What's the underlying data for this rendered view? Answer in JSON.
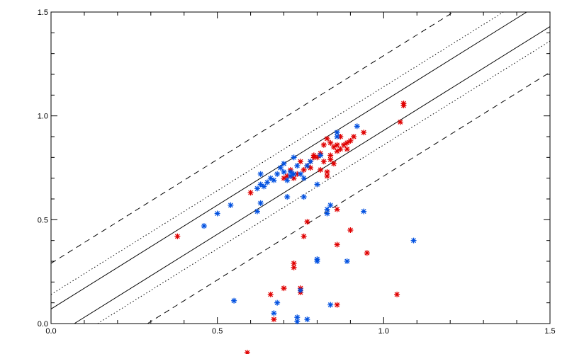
{
  "chart_data": {
    "type": "scatter",
    "title": "",
    "xlabel": "",
    "ylabel": "",
    "xlim": [
      0.0,
      1.5
    ],
    "ylim": [
      0.0,
      1.5
    ],
    "x_ticks": [
      "0.0",
      "0.5",
      "1.0",
      "1.5"
    ],
    "y_ticks": [
      "0.0",
      "0.5",
      "1.0",
      "1.5"
    ],
    "x_tick_values": [
      0.0,
      0.5,
      1.0,
      1.5
    ],
    "y_tick_values": [
      0.0,
      0.5,
      1.0,
      1.5
    ],
    "grid": false,
    "colors": {
      "series_red": "#e00000",
      "series_blue": "#0050e0",
      "lines": "#000000"
    },
    "reference_lines": [
      {
        "style": "solid",
        "slope": 1,
        "intercept": 0.07
      },
      {
        "style": "solid",
        "slope": 1,
        "intercept": -0.07
      },
      {
        "style": "dotted",
        "slope": 1,
        "intercept": 0.14
      },
      {
        "style": "dotted",
        "slope": 1,
        "intercept": -0.14
      },
      {
        "style": "dashed",
        "slope": 1,
        "intercept": 0.29
      },
      {
        "style": "dashed",
        "slope": 1,
        "intercept": -0.29
      }
    ],
    "series": [
      {
        "color": "#e00000",
        "points": [
          [
            0.38,
            0.42
          ],
          [
            0.6,
            0.63
          ],
          [
            0.66,
            0.14
          ],
          [
            0.67,
            0.02
          ],
          [
            0.7,
            0.17
          ],
          [
            0.73,
            0.29
          ],
          [
            0.73,
            0.27
          ],
          [
            0.75,
            0.17
          ],
          [
            0.75,
            0.15
          ],
          [
            0.76,
            0.42
          ],
          [
            0.77,
            0.49
          ],
          [
            0.86,
            0.55
          ],
          [
            0.86,
            0.38
          ],
          [
            0.86,
            0.09
          ],
          [
            0.9,
            0.45
          ],
          [
            0.95,
            0.34
          ],
          [
            1.04,
            0.14
          ],
          [
            1.05,
            0.97
          ],
          [
            1.06,
            1.05
          ],
          [
            1.06,
            1.06
          ],
          [
            0.94,
            0.92
          ],
          [
            0.91,
            0.9
          ],
          [
            0.9,
            0.88
          ],
          [
            0.89,
            0.87
          ],
          [
            0.88,
            0.86
          ],
          [
            0.87,
            0.84
          ],
          [
            0.86,
            0.83
          ],
          [
            0.85,
            0.85
          ],
          [
            0.84,
            0.87
          ],
          [
            0.83,
            0.89
          ],
          [
            0.82,
            0.86
          ],
          [
            0.81,
            0.82
          ],
          [
            0.8,
            0.8
          ],
          [
            0.79,
            0.81
          ],
          [
            0.78,
            0.78
          ],
          [
            0.77,
            0.76
          ],
          [
            0.76,
            0.74
          ],
          [
            0.75,
            0.78
          ],
          [
            0.74,
            0.72
          ],
          [
            0.73,
            0.7
          ],
          [
            0.72,
            0.74
          ],
          [
            0.71,
            0.71
          ],
          [
            0.7,
            0.7
          ],
          [
            0.82,
            0.78
          ],
          [
            0.84,
            0.79
          ],
          [
            0.85,
            0.77
          ],
          [
            0.83,
            0.73
          ],
          [
            0.81,
            0.74
          ],
          [
            0.79,
            0.8
          ],
          [
            0.86,
            0.86
          ],
          [
            0.87,
            0.9
          ],
          [
            0.84,
            0.81
          ],
          [
            0.78,
            0.75
          ],
          [
            0.89,
            0.84
          ],
          [
            0.83,
            0.71
          ]
        ]
      },
      {
        "color": "#0050e0",
        "points": [
          [
            0.46,
            0.47
          ],
          [
            0.5,
            0.53
          ],
          [
            0.54,
            0.57
          ],
          [
            0.55,
            0.11
          ],
          [
            0.62,
            0.54
          ],
          [
            0.63,
            0.58
          ],
          [
            0.62,
            0.65
          ],
          [
            0.63,
            0.67
          ],
          [
            0.63,
            0.72
          ],
          [
            0.64,
            0.66
          ],
          [
            0.65,
            0.68
          ],
          [
            0.66,
            0.7
          ],
          [
            0.67,
            0.69
          ],
          [
            0.67,
            0.05
          ],
          [
            0.68,
            0.1
          ],
          [
            0.68,
            0.72
          ],
          [
            0.69,
            0.75
          ],
          [
            0.7,
            0.73
          ],
          [
            0.7,
            0.77
          ],
          [
            0.71,
            0.61
          ],
          [
            0.72,
            0.73
          ],
          [
            0.72,
            0.71
          ],
          [
            0.73,
            0.72
          ],
          [
            0.74,
            0.76
          ],
          [
            0.75,
            0.72
          ],
          [
            0.76,
            0.7
          ],
          [
            0.76,
            0.61
          ],
          [
            0.77,
            0.76
          ],
          [
            0.78,
            0.78
          ],
          [
            0.8,
            0.67
          ],
          [
            0.8,
            0.31
          ],
          [
            0.8,
            0.3
          ],
          [
            0.81,
            0.81
          ],
          [
            0.83,
            0.55
          ],
          [
            0.83,
            0.53
          ],
          [
            0.84,
            0.57
          ],
          [
            0.84,
            0.09
          ],
          [
            0.86,
            0.9
          ],
          [
            0.86,
            0.92
          ],
          [
            0.89,
            0.3
          ],
          [
            0.92,
            0.95
          ],
          [
            0.94,
            0.54
          ],
          [
            1.09,
            0.4
          ],
          [
            0.74,
            0.03
          ],
          [
            0.74,
            0.01
          ],
          [
            0.75,
            0.16
          ],
          [
            0.77,
            0.02
          ],
          [
            0.73,
            0.8
          ],
          [
            0.71,
            0.69
          ]
        ]
      },
      {
        "color": "#e00000",
        "points": [
          [
            0.59,
            -0.14
          ]
        ]
      }
    ]
  }
}
